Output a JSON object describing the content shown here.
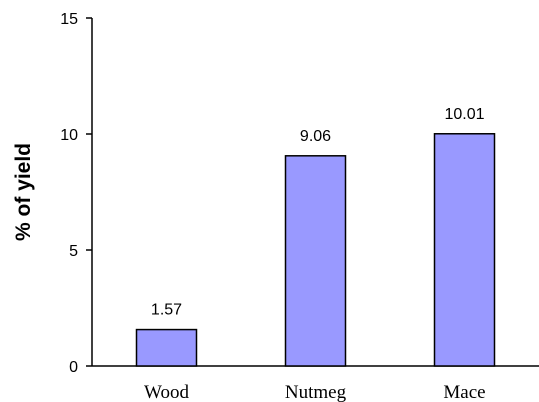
{
  "chart_data": {
    "type": "bar",
    "title": "",
    "xlabel": "",
    "ylabel": "% of yield",
    "categories": [
      "Wood",
      "Nutmeg",
      "Mace"
    ],
    "values": [
      1.57,
      9.06,
      10.01
    ],
    "data_labels": [
      "1.57",
      "9.06",
      "10.01"
    ],
    "ylim": [
      0,
      15
    ],
    "yticks": [
      0,
      5,
      10,
      15
    ],
    "ytick_labels": [
      "0",
      "5",
      "10",
      "15"
    ],
    "bar_color": "#9999ff",
    "bar_edge_color": "#000000",
    "grid": false,
    "legend": "none"
  }
}
